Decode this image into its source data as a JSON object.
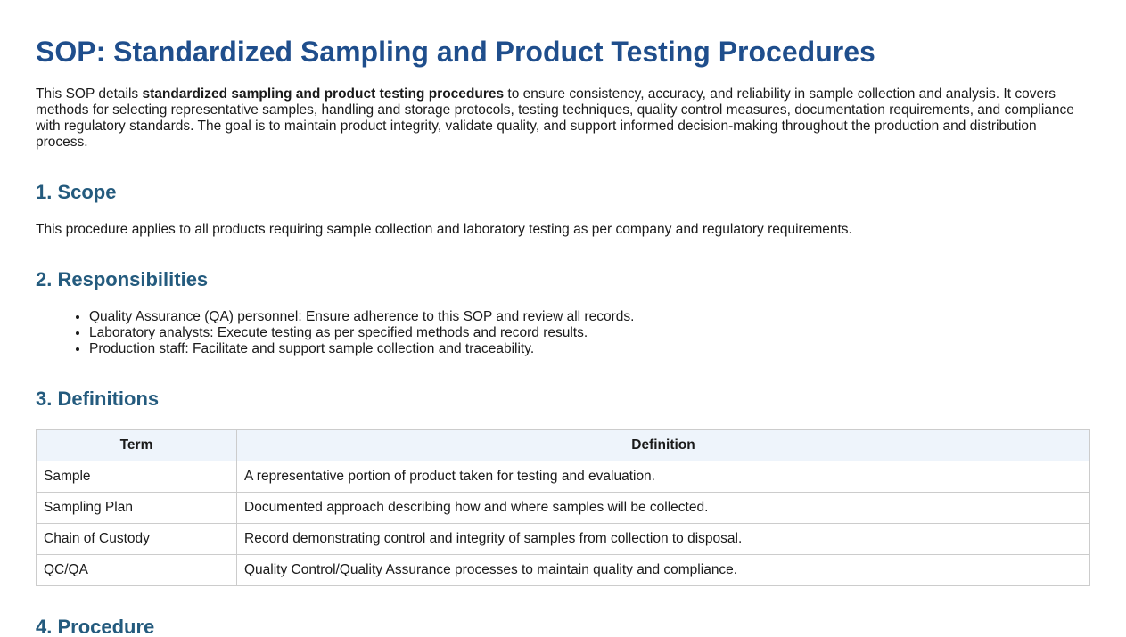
{
  "title": "SOP: Standardized Sampling and Product Testing Procedures",
  "intro": {
    "prefix": "This SOP details ",
    "bold": "standardized sampling and product testing procedures",
    "suffix": " to ensure consistency, accuracy, and reliability in sample collection and analysis. It covers methods for selecting representative samples, handling and storage protocols, testing techniques, quality control measures, documentation requirements, and compliance with regulatory standards. The goal is to maintain product integrity, validate quality, and support informed decision-making throughout the production and distribution process."
  },
  "scope": {
    "heading": "1. Scope",
    "text": "This procedure applies to all products requiring sample collection and laboratory testing as per company and regulatory requirements."
  },
  "responsibilities": {
    "heading": "2. Responsibilities",
    "items": [
      "Quality Assurance (QA) personnel: Ensure adherence to this SOP and review all records.",
      "Laboratory analysts: Execute testing as per specified methods and record results.",
      "Production staff: Facilitate and support sample collection and traceability."
    ]
  },
  "definitions": {
    "heading": "3. Definitions",
    "columns": [
      "Term",
      "Definition"
    ],
    "rows": [
      {
        "term": "Sample",
        "definition": "A representative portion of product taken for testing and evaluation."
      },
      {
        "term": "Sampling Plan",
        "definition": "Documented approach describing how and where samples will be collected."
      },
      {
        "term": "Chain of Custody",
        "definition": "Record demonstrating control and integrity of samples from collection to disposal."
      },
      {
        "term": "QC/QA",
        "definition": "Quality Control/Quality Assurance processes to maintain quality and compliance."
      }
    ]
  },
  "procedure": {
    "heading": "4. Procedure"
  },
  "colors": {
    "title": "#1f4e8c",
    "heading": "#245b7e",
    "table_header_bg": "#eef4fb"
  }
}
